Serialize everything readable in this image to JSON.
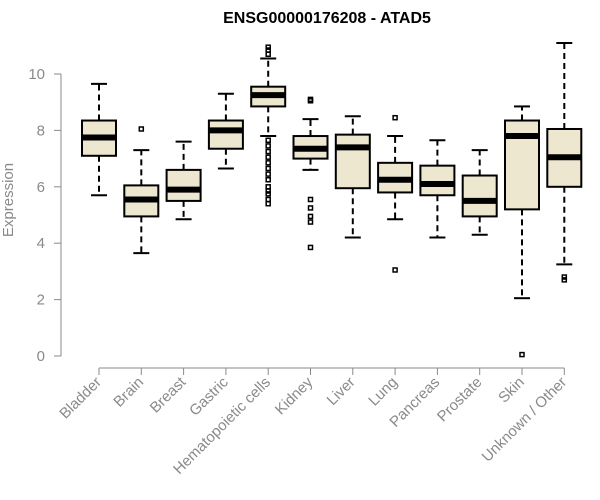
{
  "chart_data": {
    "type": "box",
    "title": "ENSG00000176208 - ATAD5",
    "xlabel": "",
    "ylabel": "Expression",
    "ylim": [
      0,
      10.5
    ],
    "yticks": [
      0,
      2,
      4,
      6,
      8,
      10
    ],
    "box_fill": "#ede7cf",
    "categories": [
      "Bladder",
      "Brain",
      "Breast",
      "Gastric",
      "Hematopoietic cells",
      "Kidney",
      "Liver",
      "Lung",
      "Pancreas",
      "Prostate",
      "Skin",
      "Unknown / Other"
    ],
    "boxes": [
      {
        "low": 5.7,
        "q1": 7.1,
        "median": 7.75,
        "q3": 8.35,
        "high": 9.65,
        "outliers": []
      },
      {
        "low": 3.65,
        "q1": 4.95,
        "median": 5.55,
        "q3": 6.05,
        "high": 7.3,
        "outliers": [
          8.05
        ]
      },
      {
        "low": 4.85,
        "q1": 5.5,
        "median": 5.9,
        "q3": 6.6,
        "high": 7.6,
        "outliers": []
      },
      {
        "low": 6.65,
        "q1": 7.35,
        "median": 8.0,
        "q3": 8.35,
        "high": 9.3,
        "outliers": []
      },
      {
        "low": 7.8,
        "q1": 8.85,
        "median": 9.25,
        "q3": 9.55,
        "high": 10.55,
        "outliers": [
          10.7,
          10.85,
          10.95,
          7.65,
          7.45,
          7.25,
          7.05,
          6.85,
          6.65,
          6.45,
          6.25,
          6.0,
          5.85,
          5.75,
          5.55,
          5.4
        ]
      },
      {
        "low": 6.6,
        "q1": 7.0,
        "median": 7.35,
        "q3": 7.8,
        "high": 8.4,
        "outliers": [
          9.05,
          9.1,
          5.55,
          5.25,
          4.95,
          4.75,
          3.85
        ]
      },
      {
        "low": 4.2,
        "q1": 5.95,
        "median": 7.4,
        "q3": 7.85,
        "high": 8.5,
        "outliers": []
      },
      {
        "low": 4.85,
        "q1": 5.8,
        "median": 6.25,
        "q3": 6.85,
        "high": 7.8,
        "outliers": [
          8.45,
          3.05
        ]
      },
      {
        "low": 4.2,
        "q1": 5.7,
        "median": 6.1,
        "q3": 6.75,
        "high": 7.65,
        "outliers": []
      },
      {
        "low": 4.3,
        "q1": 4.95,
        "median": 5.5,
        "q3": 6.4,
        "high": 7.3,
        "outliers": []
      },
      {
        "low": 2.05,
        "q1": 5.2,
        "median": 7.8,
        "q3": 8.35,
        "high": 8.85,
        "outliers": [
          0.05
        ]
      },
      {
        "low": 3.25,
        "q1": 6.0,
        "median": 7.05,
        "q3": 8.05,
        "high": 11.1,
        "outliers": [
          2.8,
          2.7
        ]
      }
    ]
  }
}
